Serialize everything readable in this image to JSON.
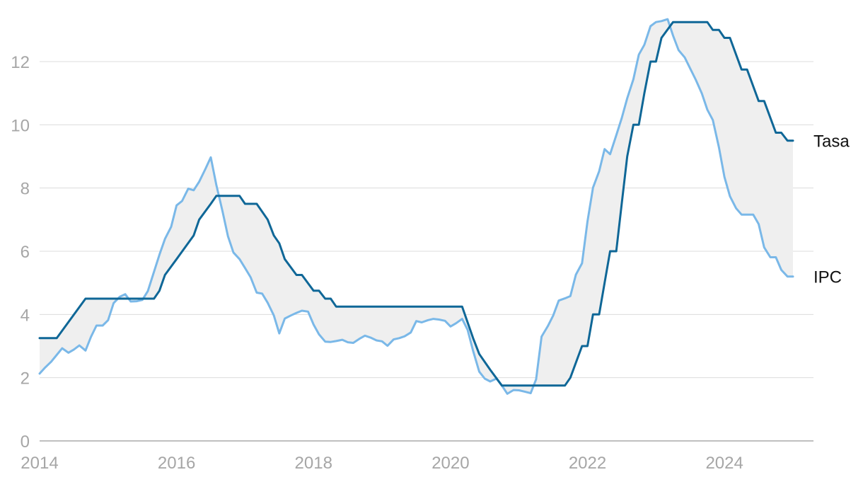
{
  "chart_data": {
    "type": "line",
    "title": "",
    "xlabel": "",
    "ylabel": "",
    "xlim": [
      2014,
      2025.3
    ],
    "ylim": [
      0,
      13.5
    ],
    "y_ticks": [
      0,
      2,
      4,
      6,
      8,
      10,
      12
    ],
    "y_tick_labels": [
      "0",
      "2",
      "4",
      "6",
      "8",
      "10",
      "12"
    ],
    "x_ticks": [
      2014,
      2016,
      2018,
      2020,
      2022,
      2024
    ],
    "x_tick_labels": [
      "2014",
      "2016",
      "2018",
      "2020",
      "2022",
      "2024"
    ],
    "grid": true,
    "legend": "direct-labels-right",
    "fill_between_series": true,
    "fill_color": "#efefef",
    "series": [
      {
        "name": "Tasa",
        "color": "#0f6797",
        "points": [
          [
            2014.0,
            3.25
          ],
          [
            2014.25,
            3.25
          ],
          [
            2014.67,
            4.5
          ],
          [
            2015.0,
            4.5
          ],
          [
            2015.5,
            4.5
          ],
          [
            2015.67,
            4.5
          ],
          [
            2015.75,
            4.75
          ],
          [
            2015.83,
            5.25
          ],
          [
            2016.0,
            5.75
          ],
          [
            2016.25,
            6.5
          ],
          [
            2016.33,
            7.0
          ],
          [
            2016.5,
            7.5
          ],
          [
            2016.58,
            7.75
          ],
          [
            2016.92,
            7.75
          ],
          [
            2017.0,
            7.5
          ],
          [
            2017.17,
            7.5
          ],
          [
            2017.33,
            7.0
          ],
          [
            2017.42,
            6.5
          ],
          [
            2017.5,
            6.25
          ],
          [
            2017.58,
            5.75
          ],
          [
            2017.75,
            5.25
          ],
          [
            2017.83,
            5.25
          ],
          [
            2018.0,
            4.75
          ],
          [
            2018.08,
            4.75
          ],
          [
            2018.17,
            4.5
          ],
          [
            2018.25,
            4.5
          ],
          [
            2018.33,
            4.25
          ],
          [
            2020.17,
            4.25
          ],
          [
            2020.33,
            3.25
          ],
          [
            2020.42,
            2.75
          ],
          [
            2020.58,
            2.25
          ],
          [
            2020.75,
            1.75
          ],
          [
            2021.67,
            1.75
          ],
          [
            2021.75,
            2.0
          ],
          [
            2021.92,
            3.0
          ],
          [
            2022.0,
            3.0
          ],
          [
            2022.08,
            4.0
          ],
          [
            2022.17,
            4.0
          ],
          [
            2022.25,
            5.0
          ],
          [
            2022.33,
            6.0
          ],
          [
            2022.42,
            6.0
          ],
          [
            2022.5,
            7.5
          ],
          [
            2022.58,
            9.0
          ],
          [
            2022.67,
            10.0
          ],
          [
            2022.75,
            10.0
          ],
          [
            2022.83,
            11.0
          ],
          [
            2022.92,
            12.0
          ],
          [
            2023.0,
            12.0
          ],
          [
            2023.08,
            12.75
          ],
          [
            2023.25,
            13.25
          ],
          [
            2023.75,
            13.25
          ],
          [
            2023.83,
            13.0
          ],
          [
            2023.92,
            13.0
          ],
          [
            2024.0,
            12.75
          ],
          [
            2024.08,
            12.75
          ],
          [
            2024.25,
            11.75
          ],
          [
            2024.33,
            11.75
          ],
          [
            2024.5,
            10.75
          ],
          [
            2024.58,
            10.75
          ],
          [
            2024.75,
            9.75
          ],
          [
            2024.83,
            9.75
          ],
          [
            2024.92,
            9.5
          ],
          [
            2025.0,
            9.5
          ]
        ]
      },
      {
        "name": "IPC",
        "color": "#7ab8e8",
        "points": [
          [
            2014.0,
            2.13
          ],
          [
            2014.08,
            2.32
          ],
          [
            2014.17,
            2.51
          ],
          [
            2014.25,
            2.72
          ],
          [
            2014.33,
            2.93
          ],
          [
            2014.42,
            2.79
          ],
          [
            2014.5,
            2.89
          ],
          [
            2014.58,
            3.02
          ],
          [
            2014.67,
            2.86
          ],
          [
            2014.75,
            3.29
          ],
          [
            2014.83,
            3.65
          ],
          [
            2014.92,
            3.65
          ],
          [
            2015.0,
            3.82
          ],
          [
            2015.08,
            4.36
          ],
          [
            2015.17,
            4.56
          ],
          [
            2015.25,
            4.64
          ],
          [
            2015.33,
            4.41
          ],
          [
            2015.42,
            4.42
          ],
          [
            2015.5,
            4.46
          ],
          [
            2015.58,
            4.74
          ],
          [
            2015.67,
            5.35
          ],
          [
            2015.75,
            5.89
          ],
          [
            2015.83,
            6.39
          ],
          [
            2015.92,
            6.77
          ],
          [
            2016.0,
            7.45
          ],
          [
            2016.08,
            7.59
          ],
          [
            2016.17,
            7.98
          ],
          [
            2016.25,
            7.93
          ],
          [
            2016.33,
            8.2
          ],
          [
            2016.42,
            8.6
          ],
          [
            2016.5,
            8.97
          ],
          [
            2016.58,
            8.1
          ],
          [
            2016.67,
            7.27
          ],
          [
            2016.75,
            6.48
          ],
          [
            2016.83,
            5.96
          ],
          [
            2016.92,
            5.75
          ],
          [
            2017.0,
            5.47
          ],
          [
            2017.08,
            5.18
          ],
          [
            2017.17,
            4.69
          ],
          [
            2017.25,
            4.66
          ],
          [
            2017.33,
            4.37
          ],
          [
            2017.42,
            3.97
          ],
          [
            2017.5,
            3.4
          ],
          [
            2017.58,
            3.87
          ],
          [
            2017.67,
            3.97
          ],
          [
            2017.75,
            4.05
          ],
          [
            2017.83,
            4.12
          ],
          [
            2017.92,
            4.09
          ],
          [
            2018.0,
            3.68
          ],
          [
            2018.08,
            3.37
          ],
          [
            2018.17,
            3.14
          ],
          [
            2018.25,
            3.13
          ],
          [
            2018.33,
            3.16
          ],
          [
            2018.42,
            3.2
          ],
          [
            2018.5,
            3.12
          ],
          [
            2018.58,
            3.1
          ],
          [
            2018.67,
            3.23
          ],
          [
            2018.75,
            3.33
          ],
          [
            2018.83,
            3.27
          ],
          [
            2018.92,
            3.18
          ],
          [
            2019.0,
            3.15
          ],
          [
            2019.08,
            3.01
          ],
          [
            2019.17,
            3.21
          ],
          [
            2019.25,
            3.25
          ],
          [
            2019.33,
            3.31
          ],
          [
            2019.42,
            3.43
          ],
          [
            2019.5,
            3.79
          ],
          [
            2019.58,
            3.75
          ],
          [
            2019.67,
            3.82
          ],
          [
            2019.75,
            3.86
          ],
          [
            2019.83,
            3.84
          ],
          [
            2019.92,
            3.8
          ],
          [
            2020.0,
            3.62
          ],
          [
            2020.08,
            3.72
          ],
          [
            2020.17,
            3.86
          ],
          [
            2020.25,
            3.51
          ],
          [
            2020.33,
            2.85
          ],
          [
            2020.42,
            2.19
          ],
          [
            2020.5,
            1.97
          ],
          [
            2020.58,
            1.88
          ],
          [
            2020.67,
            1.97
          ],
          [
            2020.75,
            1.75
          ],
          [
            2020.83,
            1.49
          ],
          [
            2020.92,
            1.61
          ],
          [
            2021.0,
            1.6
          ],
          [
            2021.08,
            1.56
          ],
          [
            2021.17,
            1.51
          ],
          [
            2021.25,
            1.95
          ],
          [
            2021.33,
            3.3
          ],
          [
            2021.42,
            3.63
          ],
          [
            2021.5,
            3.97
          ],
          [
            2021.58,
            4.44
          ],
          [
            2021.67,
            4.51
          ],
          [
            2021.75,
            4.58
          ],
          [
            2021.83,
            5.26
          ],
          [
            2021.92,
            5.62
          ],
          [
            2022.0,
            6.94
          ],
          [
            2022.08,
            8.01
          ],
          [
            2022.17,
            8.53
          ],
          [
            2022.25,
            9.23
          ],
          [
            2022.33,
            9.07
          ],
          [
            2022.42,
            9.67
          ],
          [
            2022.5,
            10.21
          ],
          [
            2022.58,
            10.84
          ],
          [
            2022.67,
            11.44
          ],
          [
            2022.75,
            12.22
          ],
          [
            2022.83,
            12.53
          ],
          [
            2022.92,
            13.12
          ],
          [
            2023.0,
            13.25
          ],
          [
            2023.08,
            13.28
          ],
          [
            2023.17,
            13.34
          ],
          [
            2023.25,
            12.82
          ],
          [
            2023.33,
            12.36
          ],
          [
            2023.42,
            12.13
          ],
          [
            2023.5,
            11.78
          ],
          [
            2023.58,
            11.43
          ],
          [
            2023.67,
            10.99
          ],
          [
            2023.75,
            10.48
          ],
          [
            2023.83,
            10.15
          ],
          [
            2023.92,
            9.28
          ],
          [
            2024.0,
            8.35
          ],
          [
            2024.08,
            7.74
          ],
          [
            2024.17,
            7.36
          ],
          [
            2024.25,
            7.16
          ],
          [
            2024.33,
            7.16
          ],
          [
            2024.42,
            7.16
          ],
          [
            2024.5,
            6.86
          ],
          [
            2024.58,
            6.12
          ],
          [
            2024.67,
            5.81
          ],
          [
            2024.75,
            5.81
          ],
          [
            2024.83,
            5.41
          ],
          [
            2024.92,
            5.2
          ],
          [
            2025.0,
            5.2
          ]
        ]
      }
    ]
  }
}
